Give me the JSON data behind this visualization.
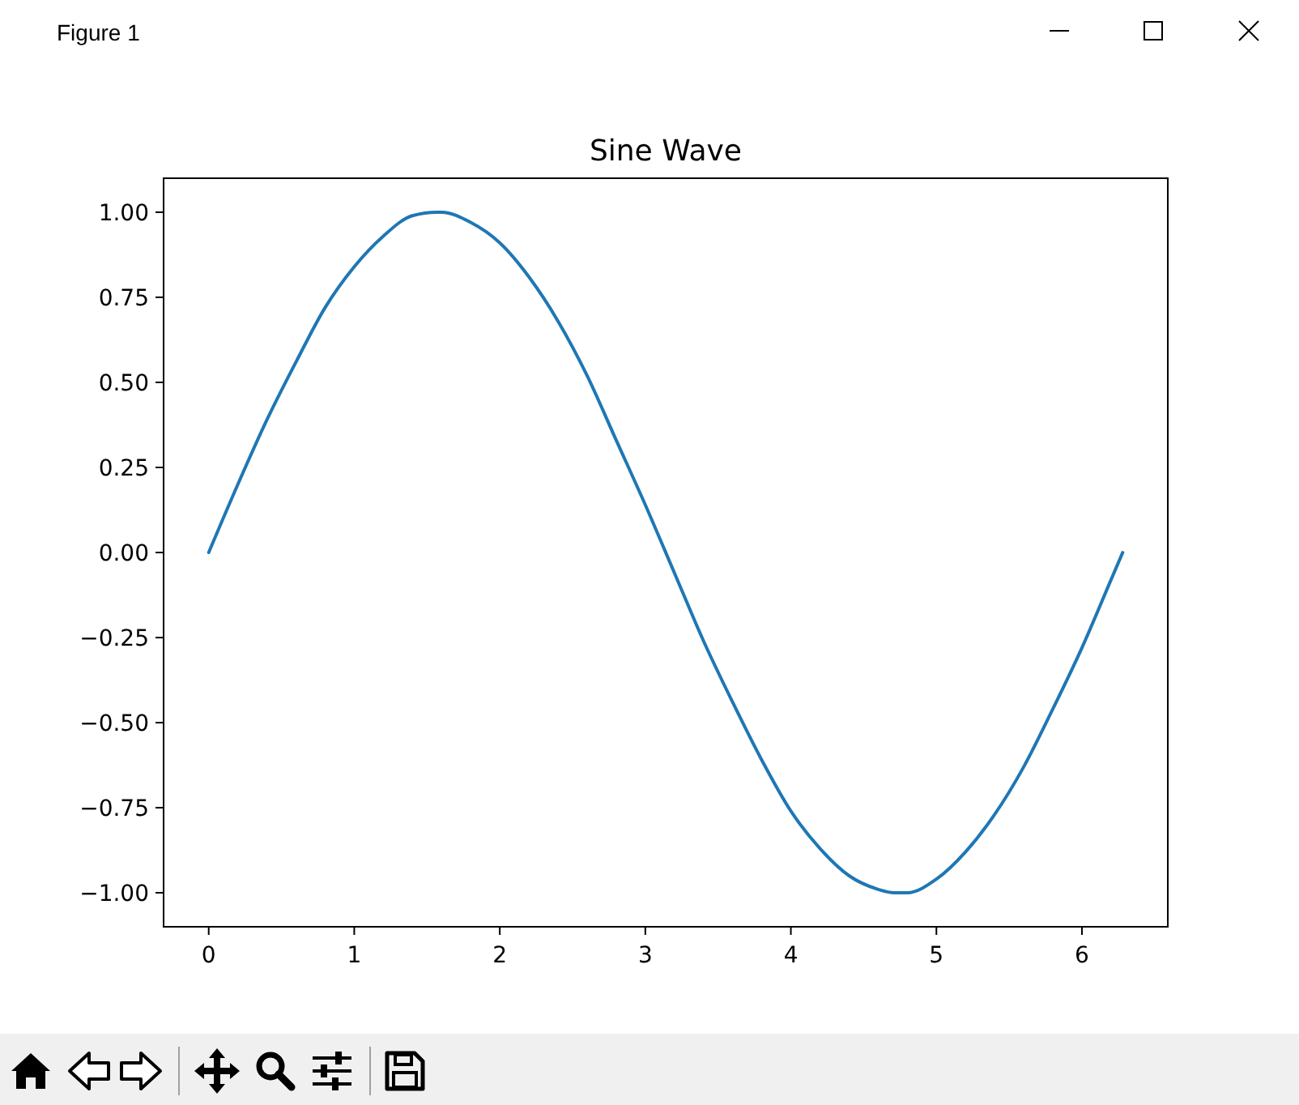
{
  "chart_data": {
    "type": "line",
    "title": "Sine Wave",
    "annotations": [
      "Figure 1"
    ],
    "x": [
      0,
      0.2,
      0.4,
      0.6,
      0.8,
      1.0,
      1.2,
      1.4,
      1.57,
      1.6,
      1.8,
      2.0,
      2.2,
      2.4,
      2.6,
      2.8,
      3.0,
      3.2,
      3.4,
      3.6,
      3.8,
      4.0,
      4.2,
      4.4,
      4.6,
      4.71,
      4.8,
      5.0,
      5.2,
      5.4,
      5.6,
      5.8,
      6.0,
      6.2,
      6.28
    ],
    "series": [
      {
        "color": "#1f77b4",
        "values": [
          0,
          0.2,
          0.39,
          0.56,
          0.72,
          0.84,
          0.93,
          0.99,
          1.0,
          1.0,
          0.97,
          0.91,
          0.81,
          0.68,
          0.52,
          0.33,
          0.14,
          -0.06,
          -0.26,
          -0.44,
          -0.61,
          -0.76,
          -0.87,
          -0.95,
          -0.99,
          -1.0,
          -1.0,
          -0.96,
          -0.88,
          -0.77,
          -0.63,
          -0.46,
          -0.28,
          -0.08,
          0
        ]
      }
    ],
    "xlim": [
      -0.31,
      6.59
    ],
    "ylim": [
      -1.1,
      1.1
    ],
    "xticks": [
      0,
      1,
      2,
      3,
      4,
      5,
      6
    ],
    "yticks": [
      {
        "value": -1,
        "label": "−1.00"
      },
      {
        "value": -0.75,
        "label": "−0.75"
      },
      {
        "value": -0.5,
        "label": "−0.50"
      },
      {
        "value": -0.25,
        "label": "−0.25"
      },
      {
        "value": 0,
        "label": "0.00"
      },
      {
        "value": 0.25,
        "label": "0.25"
      },
      {
        "value": 0.5,
        "label": "0.50"
      },
      {
        "value": 0.75,
        "label": "0.75"
      },
      {
        "value": 1,
        "label": "1.00"
      }
    ],
    "grid": false,
    "marker": "none",
    "line_style": "solid"
  }
}
